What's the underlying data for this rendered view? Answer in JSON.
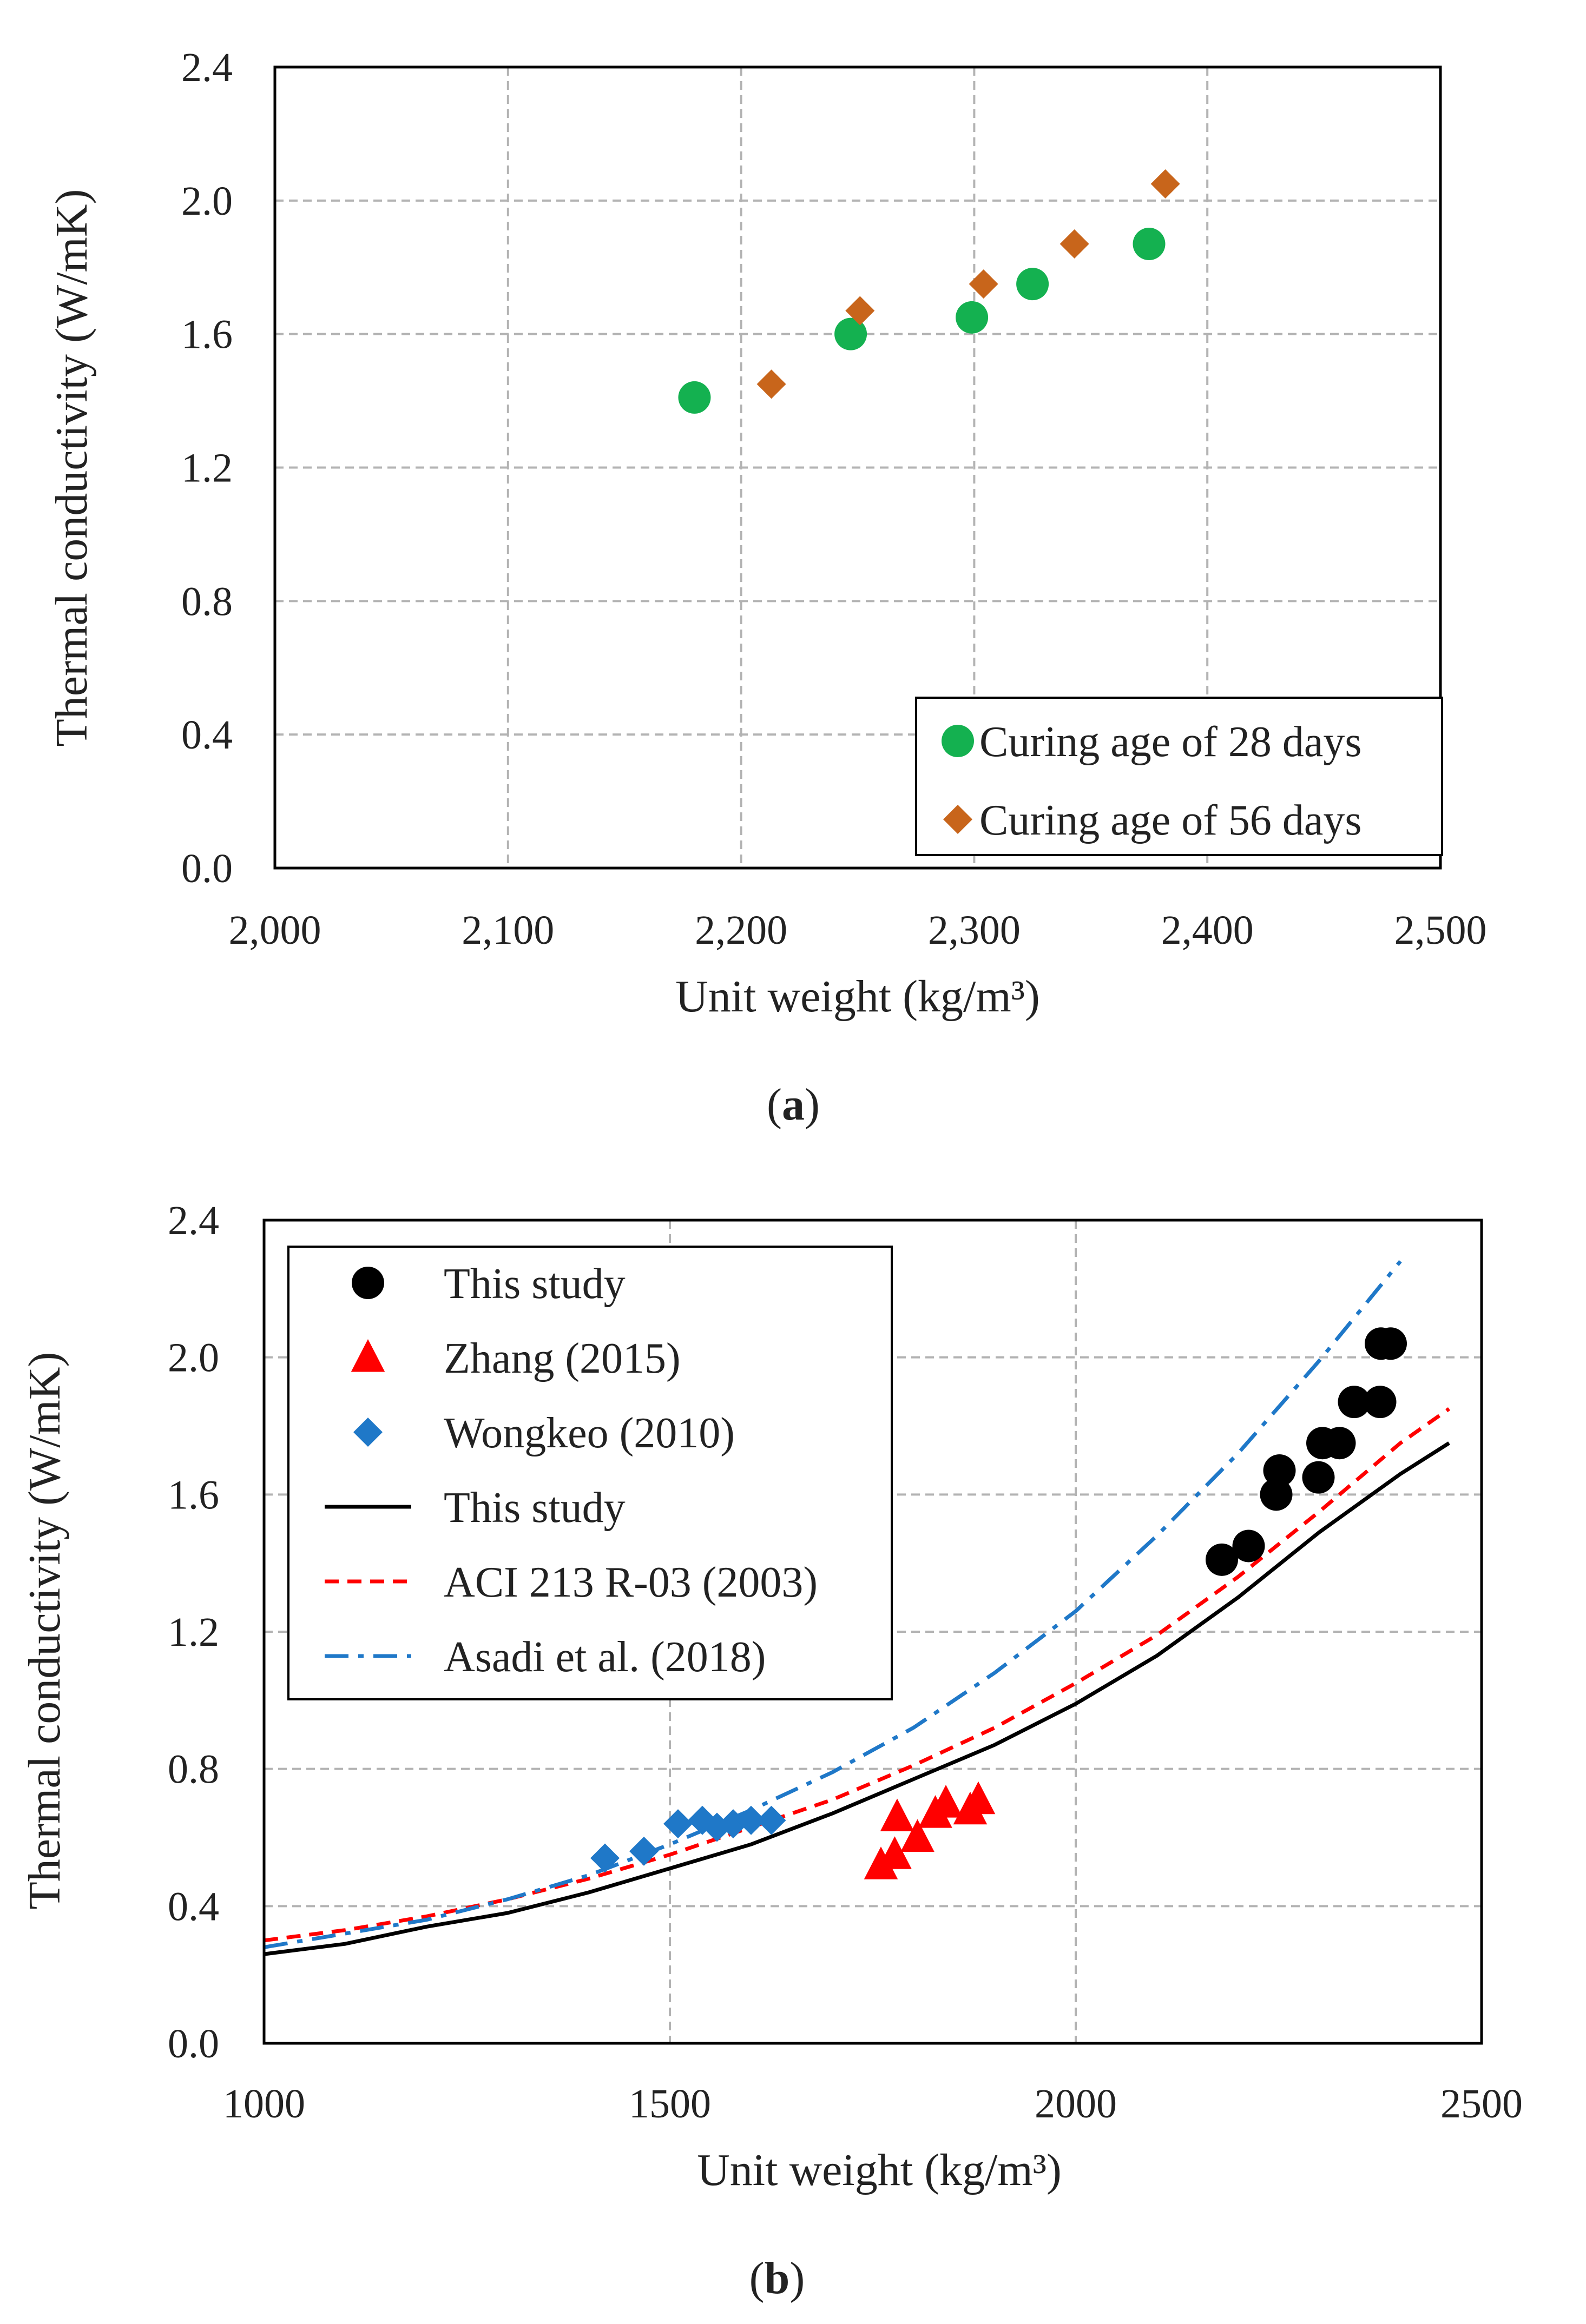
{
  "colors": {
    "grid": "#b3b3b3",
    "axis": "#000000",
    "green_circle": "#14b150",
    "orange_diamond": "#c8651b",
    "black_circle": "#000000",
    "red_triangle": "#ff0000",
    "blue_diamond": "#1f78c8",
    "this_study_line": "#000000",
    "aci_line": "#ff0000",
    "asadi_line": "#1f78c8"
  },
  "chart_data": [
    {
      "id": "a",
      "type": "scatter",
      "caption_open": "(",
      "caption_letter": "a",
      "caption_close": ")",
      "xlabel": "Unit weight (kg/m³)",
      "ylabel": "Thermal conductivity (W/mK)",
      "xlim": [
        2000,
        2500
      ],
      "ylim": [
        0.0,
        2.4
      ],
      "grid": true,
      "legend_position": "bottom-right",
      "x_ticks": [
        {
          "value": 2000,
          "label": "2,000"
        },
        {
          "value": 2100,
          "label": "2,100"
        },
        {
          "value": 2200,
          "label": "2,200"
        },
        {
          "value": 2300,
          "label": "2,300"
        },
        {
          "value": 2400,
          "label": "2,400"
        },
        {
          "value": 2500,
          "label": "2,500"
        }
      ],
      "y_ticks": [
        {
          "value": 0.0,
          "label": "0.0"
        },
        {
          "value": 0.4,
          "label": "0.4"
        },
        {
          "value": 0.8,
          "label": "0.8"
        },
        {
          "value": 1.2,
          "label": "1.2"
        },
        {
          "value": 1.6,
          "label": "1.6"
        },
        {
          "value": 2.0,
          "label": "2.0"
        },
        {
          "value": 2.4,
          "label": "2.4"
        }
      ],
      "series": [
        {
          "name": "Curing age of 28 days",
          "marker": "circle",
          "color_key": "green_circle",
          "points": [
            [
              2180,
              1.41
            ],
            [
              2247,
              1.6
            ],
            [
              2299,
              1.65
            ],
            [
              2325,
              1.75
            ],
            [
              2375,
              1.87
            ]
          ]
        },
        {
          "name": "Curing age of 56 days",
          "marker": "diamond",
          "color_key": "orange_diamond",
          "points": [
            [
              2213,
              1.45
            ],
            [
              2251,
              1.67
            ],
            [
              2304,
              1.75
            ],
            [
              2343,
              1.87
            ],
            [
              2382,
              2.05
            ]
          ]
        }
      ]
    },
    {
      "id": "b",
      "type": "scatter",
      "caption_open": "(",
      "caption_letter": "b",
      "caption_close": ")",
      "xlabel": "Unit weight (kg/m³)",
      "ylabel": "Thermal conductivity (W/mK)",
      "xlim": [
        1000,
        2500
      ],
      "ylim": [
        0.0,
        2.4
      ],
      "grid": true,
      "legend_position": "top-left",
      "x_ticks": [
        {
          "value": 1000,
          "label": "1000"
        },
        {
          "value": 1500,
          "label": "1500"
        },
        {
          "value": 2000,
          "label": "2000"
        },
        {
          "value": 2500,
          "label": "2500"
        }
      ],
      "y_ticks": [
        {
          "value": 0.0,
          "label": "0.0"
        },
        {
          "value": 0.4,
          "label": "0.4"
        },
        {
          "value": 0.8,
          "label": "0.8"
        },
        {
          "value": 1.2,
          "label": "1.2"
        },
        {
          "value": 1.6,
          "label": "1.6"
        },
        {
          "value": 2.0,
          "label": "2.0"
        },
        {
          "value": 2.4,
          "label": "2.4"
        }
      ],
      "series": [
        {
          "name": "This study",
          "marker": "circle",
          "color_key": "black_circle",
          "points": [
            [
              2180,
              1.41
            ],
            [
              2213,
              1.45
            ],
            [
              2247,
              1.6
            ],
            [
              2251,
              1.67
            ],
            [
              2299,
              1.65
            ],
            [
              2304,
              1.75
            ],
            [
              2325,
              1.75
            ],
            [
              2343,
              1.87
            ],
            [
              2375,
              1.87
            ],
            [
              2376,
              2.04
            ],
            [
              2388,
              2.04
            ]
          ]
        },
        {
          "name": "Zhang (2015)",
          "marker": "triangle",
          "color_key": "red_triangle",
          "points": [
            [
              1760,
              0.52
            ],
            [
              1777,
              0.55
            ],
            [
              1780,
              0.66
            ],
            [
              1805,
              0.6
            ],
            [
              1827,
              0.67
            ],
            [
              1840,
              0.7
            ],
            [
              1870,
              0.68
            ],
            [
              1880,
              0.71
            ]
          ]
        },
        {
          "name": "Wongkeo (2010)",
          "marker": "diamond",
          "color_key": "blue_diamond",
          "points": [
            [
              1420,
              0.54
            ],
            [
              1468,
              0.56
            ],
            [
              1510,
              0.64
            ],
            [
              1540,
              0.65
            ],
            [
              1558,
              0.63
            ],
            [
              1578,
              0.64
            ],
            [
              1600,
              0.65
            ],
            [
              1625,
              0.65
            ]
          ]
        },
        {
          "name": "This study",
          "marker": "line",
          "line_style": "solid",
          "color_key": "this_study_line",
          "points": [
            [
              1000,
              0.26
            ],
            [
              1100,
              0.29
            ],
            [
              1200,
              0.34
            ],
            [
              1300,
              0.38
            ],
            [
              1400,
              0.44
            ],
            [
              1500,
              0.51
            ],
            [
              1600,
              0.58
            ],
            [
              1700,
              0.67
            ],
            [
              1800,
              0.77
            ],
            [
              1900,
              0.87
            ],
            [
              2000,
              0.99
            ],
            [
              2100,
              1.13
            ],
            [
              2200,
              1.3
            ],
            [
              2300,
              1.49
            ],
            [
              2400,
              1.66
            ],
            [
              2460,
              1.75
            ]
          ]
        },
        {
          "name": "ACI 213 R-03 (2003)",
          "marker": "line",
          "line_style": "dashed",
          "color_key": "aci_line",
          "points": [
            [
              1000,
              0.3
            ],
            [
              1100,
              0.33
            ],
            [
              1200,
              0.37
            ],
            [
              1300,
              0.42
            ],
            [
              1400,
              0.48
            ],
            [
              1500,
              0.55
            ],
            [
              1600,
              0.63
            ],
            [
              1700,
              0.71
            ],
            [
              1800,
              0.81
            ],
            [
              1900,
              0.92
            ],
            [
              2000,
              1.05
            ],
            [
              2100,
              1.19
            ],
            [
              2200,
              1.36
            ],
            [
              2300,
              1.55
            ],
            [
              2400,
              1.75
            ],
            [
              2460,
              1.85
            ]
          ]
        },
        {
          "name": "Asadi et al. (2018)",
          "marker": "line",
          "line_style": "dashdot",
          "color_key": "asadi_line",
          "points": [
            [
              1000,
              0.28
            ],
            [
              1100,
              0.32
            ],
            [
              1200,
              0.36
            ],
            [
              1300,
              0.42
            ],
            [
              1400,
              0.49
            ],
            [
              1500,
              0.58
            ],
            [
              1600,
              0.68
            ],
            [
              1700,
              0.79
            ],
            [
              1800,
              0.92
            ],
            [
              1900,
              1.08
            ],
            [
              2000,
              1.26
            ],
            [
              2100,
              1.48
            ],
            [
              2200,
              1.72
            ],
            [
              2300,
              1.99
            ],
            [
              2400,
              2.28
            ]
          ]
        }
      ]
    }
  ]
}
